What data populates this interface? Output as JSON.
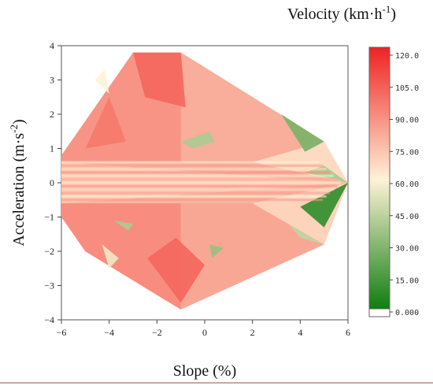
{
  "chart_data": {
    "type": "heatmap",
    "xlabel": "Slope (%)",
    "ylabel_main": "Acceleration (m·s",
    "ylabel_sup": "-2",
    "ylabel_end": ")",
    "colorbar_title_main": "Velocity (km·h",
    "colorbar_title_sup": "-1",
    "colorbar_title_end": ")",
    "xlim": [
      -6,
      6
    ],
    "ylim": [
      -4,
      4
    ],
    "xticks": [
      "−6",
      "−4",
      "−2",
      "0",
      "2",
      "4",
      "6"
    ],
    "xtick_values": [
      -6,
      -4,
      -2,
      0,
      2,
      4,
      6
    ],
    "yticks": [
      "−4",
      "−3",
      "−2",
      "−1",
      "0",
      "1",
      "2",
      "3",
      "4"
    ],
    "ytick_values": [
      -4,
      -3,
      -2,
      -1,
      0,
      1,
      2,
      3,
      4
    ],
    "colorbar_ticks": [
      "0.000",
      "15.00",
      "30.00",
      "45.00",
      "60.00",
      "75.00",
      "90.00",
      "105.0",
      "120.0"
    ],
    "colorbar_tick_values": [
      0,
      15,
      30,
      45,
      60,
      75,
      90,
      105,
      120
    ],
    "colorbar_range": [
      0,
      120
    ],
    "colormap": {
      "low": "#0a7a0a",
      "mid": "#fff2d6",
      "high": "#ee2222"
    },
    "boundary": [
      [
        -6,
        0.8
      ],
      [
        -3,
        3.8
      ],
      [
        -1,
        3.8
      ],
      [
        5,
        1.2
      ],
      [
        6,
        0
      ],
      [
        5,
        -1.8
      ],
      [
        -1,
        -3.7
      ],
      [
        -5,
        -2
      ],
      [
        -6,
        -1
      ]
    ],
    "regions": [
      {
        "points": [
          [
            -6,
            0.8
          ],
          [
            -3,
            3.8
          ],
          [
            -1,
            3.8
          ],
          [
            -1,
            0.6
          ],
          [
            -6,
            0.6
          ]
        ],
        "value": 88
      },
      {
        "points": [
          [
            -1,
            3.8
          ],
          [
            5,
            1.2
          ],
          [
            2,
            0.6
          ],
          [
            -1,
            0.6
          ]
        ],
        "value": 80
      },
      {
        "points": [
          [
            -6,
            -1
          ],
          [
            -5,
            -2
          ],
          [
            -1,
            -3.7
          ],
          [
            -1,
            -0.6
          ],
          [
            -6,
            -0.6
          ]
        ],
        "value": 90
      },
      {
        "points": [
          [
            -1,
            -3.7
          ],
          [
            5,
            -1.8
          ],
          [
            2,
            -0.6
          ],
          [
            -1,
            -0.6
          ]
        ],
        "value": 82
      },
      {
        "points": [
          [
            -6,
            0.6
          ],
          [
            6,
            0
          ],
          [
            -6,
            -0.6
          ]
        ],
        "value": 72
      },
      {
        "points": [
          [
            5,
            1.2
          ],
          [
            6,
            0
          ],
          [
            2,
            0.6
          ]
        ],
        "value": 66
      },
      {
        "points": [
          [
            5,
            -1.8
          ],
          [
            6,
            0
          ],
          [
            2,
            -0.6
          ]
        ],
        "value": 68
      },
      {
        "points": [
          [
            -3,
            3.8
          ],
          [
            -1,
            3.8
          ],
          [
            -0.8,
            2.2
          ],
          [
            -2.5,
            2.5
          ]
        ],
        "value": 100
      },
      {
        "points": [
          [
            -2.4,
            -2.2
          ],
          [
            -1,
            -3.5
          ],
          [
            0,
            -2.4
          ],
          [
            -1.2,
            -1.6
          ]
        ],
        "value": 100
      },
      {
        "points": [
          [
            -5,
            1.0
          ],
          [
            -4,
            2.5
          ],
          [
            -3.3,
            1.2
          ]
        ],
        "value": 95
      },
      {
        "points": [
          [
            3.2,
            2.0
          ],
          [
            5,
            1.2
          ],
          [
            4.2,
            0.9
          ]
        ],
        "value": 28
      },
      {
        "points": [
          [
            4.2,
            0.3
          ],
          [
            6,
            0
          ],
          [
            5,
            0.5
          ]
        ],
        "value": 40
      },
      {
        "points": [
          [
            4,
            -0.7
          ],
          [
            6,
            0
          ],
          [
            5,
            -1.3
          ]
        ],
        "value": 10
      },
      {
        "points": [
          [
            3.5,
            -1.2
          ],
          [
            5,
            -1.8
          ],
          [
            4,
            -1.6
          ]
        ],
        "value": 45
      },
      {
        "points": [
          [
            -1,
            1.2
          ],
          [
            0.2,
            1.5
          ],
          [
            0.4,
            1.2
          ],
          [
            -0.5,
            1.0
          ]
        ],
        "value": 40
      },
      {
        "points": [
          [
            0.2,
            -1.8
          ],
          [
            0.8,
            -1.9
          ],
          [
            0.3,
            -2.2
          ]
        ],
        "value": 35
      },
      {
        "points": [
          [
            -3.8,
            -1.1
          ],
          [
            -3,
            -1.2
          ],
          [
            -3.2,
            -1.4
          ]
        ],
        "value": 40
      },
      {
        "points": [
          [
            -4.3,
            -1.8
          ],
          [
            -3.6,
            -2.2
          ],
          [
            -4.0,
            -2.5
          ]
        ],
        "value": 55
      },
      {
        "points": [
          [
            -4.6,
            3.0
          ],
          [
            -4.2,
            3.3
          ],
          [
            -4.0,
            2.6
          ]
        ],
        "value": 60
      }
    ]
  }
}
